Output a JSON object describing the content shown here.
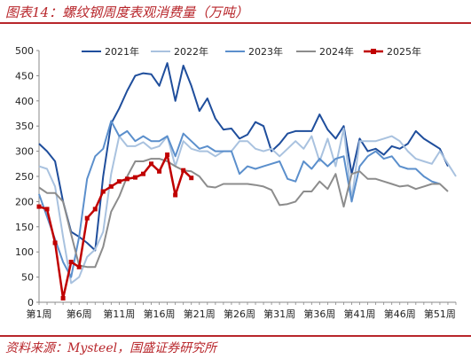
{
  "title": "图表14：螺纹钢周度表观消费量（万吨）",
  "source": "资料来源：Mysteel，国盛证券研究所",
  "chart_data": {
    "type": "line",
    "ylim": [
      0,
      500
    ],
    "yticks": [
      0,
      50,
      100,
      150,
      200,
      250,
      300,
      350,
      400,
      450,
      500
    ],
    "xlim": [
      1,
      53
    ],
    "xticks": [
      {
        "week": 1,
        "label": "第1周"
      },
      {
        "week": 6,
        "label": "第6周"
      },
      {
        "week": 11,
        "label": "第11周"
      },
      {
        "week": 16,
        "label": "第16周"
      },
      {
        "week": 21,
        "label": "第21周"
      },
      {
        "week": 26,
        "label": "第26周"
      },
      {
        "week": 31,
        "label": "第31周"
      },
      {
        "week": 36,
        "label": "第36周"
      },
      {
        "week": 41,
        "label": "第41周"
      },
      {
        "week": 46,
        "label": "第46周"
      },
      {
        "week": 51,
        "label": "第51周"
      }
    ],
    "legend_position": "top",
    "series": [
      {
        "name": "2021年",
        "color": "#1f4e9c",
        "width": 2,
        "marker": false,
        "values": [
          315,
          300,
          280,
          200,
          140,
          130,
          118,
          103,
          250,
          355,
          385,
          420,
          450,
          455,
          453,
          430,
          475,
          400,
          470,
          430,
          380,
          405,
          365,
          343,
          345,
          325,
          333,
          358,
          350,
          300,
          315,
          335,
          340,
          340,
          340,
          373,
          343,
          325,
          350,
          255,
          325,
          300,
          305,
          293,
          310,
          305,
          315,
          340,
          325,
          315,
          305,
          270
        ]
      },
      {
        "name": "2022年",
        "color": "#a9c2df",
        "width": 2,
        "marker": false,
        "values": [
          270,
          265,
          230,
          130,
          38,
          50,
          90,
          105,
          140,
          255,
          330,
          310,
          310,
          318,
          305,
          310,
          330,
          270,
          320,
          305,
          300,
          300,
          290,
          300,
          300,
          320,
          320,
          305,
          300,
          305,
          290,
          305,
          320,
          305,
          330,
          280,
          325,
          270,
          345,
          205,
          320,
          320,
          320,
          325,
          330,
          320,
          300,
          285,
          280,
          275,
          300,
          275,
          250
        ]
      },
      {
        "name": "2023年",
        "color": "#5b8fcc",
        "width": 2,
        "marker": false,
        "values": [
          215,
          170,
          125,
          80,
          50,
          130,
          245,
          290,
          305,
          360,
          330,
          340,
          320,
          330,
          320,
          320,
          330,
          290,
          335,
          320,
          305,
          310,
          300,
          300,
          300,
          255,
          270,
          265,
          270,
          275,
          280,
          245,
          240,
          280,
          265,
          285,
          270,
          285,
          290,
          200,
          270,
          290,
          300,
          285,
          290,
          270,
          265,
          265,
          250,
          240,
          235
        ]
      },
      {
        "name": "2024年",
        "color": "#8c8c8c",
        "width": 2,
        "marker": false,
        "values": [
          228,
          217,
          217,
          200,
          135,
          73,
          70,
          70,
          110,
          180,
          210,
          250,
          280,
          280,
          285,
          285,
          280,
          270,
          262,
          260,
          250,
          230,
          228,
          235,
          235,
          235,
          235,
          233,
          230,
          223,
          193,
          195,
          200,
          220,
          220,
          240,
          225,
          255,
          190,
          255,
          260,
          245,
          245,
          240,
          235,
          230,
          232,
          225,
          230,
          235,
          235,
          220
        ]
      },
      {
        "name": "2025年",
        "color": "#c00000",
        "width": 2.5,
        "marker": true,
        "values": [
          190,
          185,
          118,
          8,
          80,
          70,
          167,
          185,
          220,
          230,
          240,
          245,
          248,
          255,
          275,
          260,
          293,
          213,
          262,
          247
        ]
      }
    ]
  }
}
